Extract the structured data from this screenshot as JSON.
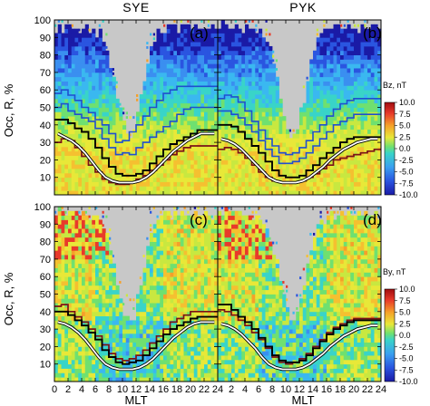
{
  "chart_data": {
    "type": "heatmap",
    "grid": "none",
    "xlabel": "MLT",
    "ylabel": "Occ, R, %",
    "xlim": [
      0,
      24
    ],
    "ylim": [
      0,
      100
    ],
    "x_ticks": [
      "0",
      "2",
      "4",
      "6",
      "8",
      "10",
      "12",
      "14",
      "16",
      "18",
      "20",
      "22",
      "24"
    ],
    "y_ticks": [
      "10",
      "20",
      "30",
      "40",
      "50",
      "60",
      "70",
      "80",
      "90",
      "100"
    ],
    "panels": [
      {
        "title": "SYE",
        "tag": "(a)",
        "colorbar_label": "",
        "colorbar_ticks": [],
        "thresholds": {
          "white_line": [
            35,
            33,
            31,
            28,
            24,
            19,
            14,
            10,
            8,
            7,
            7,
            7,
            8,
            10,
            13,
            17,
            21,
            25,
            28,
            31,
            33,
            35,
            35,
            35
          ],
          "black_line": [
            43,
            43,
            41,
            38,
            36,
            32,
            27,
            21,
            16,
            12,
            11,
            11,
            12,
            14,
            18,
            22,
            26,
            29,
            31,
            33,
            35,
            37,
            37,
            37
          ],
          "dark_red_line": [
            30,
            32,
            31,
            27,
            22,
            17,
            13,
            9,
            7,
            6,
            6,
            7,
            9,
            11,
            14,
            17,
            20,
            23,
            25,
            27,
            28,
            28,
            28,
            28
          ],
          "blue_lines": [
            [
              50,
              52,
              48,
              46,
              44,
              42,
              38,
              32,
              27,
              23,
              24,
              23,
              27,
              30,
              33,
              36,
              39,
              42,
              46,
              49,
              50,
              50,
              50,
              50
            ],
            [
              58,
              60,
              57,
              54,
              50,
              47,
              43,
              40,
              35,
              30,
              31,
              36,
              40,
              45,
              50,
              54,
              58,
              60,
              62,
              62,
              62,
              62,
              62,
              62
            ]
          ]
        }
      },
      {
        "title": "PYK",
        "tag": "(b)",
        "colorbar_label": "Bz, nT",
        "colorbar_ticks": [
          "10.0",
          "7.5",
          "5.0",
          "2.5",
          "0.0",
          "-2.5",
          "-5.0",
          "-7.5",
          "-10.0"
        ],
        "thresholds": {
          "white_line": [
            32,
            31,
            29,
            26,
            22,
            18,
            14,
            10,
            8,
            7,
            7,
            7,
            8,
            10,
            13,
            16,
            20,
            23,
            26,
            28,
            30,
            31,
            32,
            32
          ],
          "black_line": [
            40,
            40,
            39,
            36,
            32,
            28,
            24,
            19,
            14,
            11,
            10,
            10,
            11,
            14,
            17,
            21,
            24,
            27,
            30,
            32,
            33,
            33,
            33,
            33
          ],
          "dark_red_line": [
            26,
            27,
            26,
            24,
            21,
            17,
            13,
            10,
            8,
            7,
            7,
            7,
            8,
            10,
            12,
            15,
            17,
            20,
            21,
            22,
            23,
            24,
            25,
            26
          ],
          "blue_lines": [
            [
              48,
              48,
              46,
              44,
              40,
              36,
              31,
              26,
              22,
              18,
              18,
              19,
              21,
              24,
              28,
              32,
              36,
              40,
              42,
              44,
              46,
              46,
              46,
              46
            ],
            [
              55,
              57,
              56,
              53,
              48,
              42,
              37,
              32,
              28,
              24,
              23,
              24,
              27,
              31,
              36,
              40,
              45,
              49,
              52,
              54,
              55,
              55,
              55,
              55
            ]
          ]
        }
      },
      {
        "title": "",
        "tag": "(c)",
        "colorbar_label": "",
        "colorbar_ticks": [],
        "thresholds": {
          "white_line": [
            34,
            33,
            31,
            28,
            24,
            19,
            14,
            10,
            8,
            7,
            7,
            7,
            8,
            10,
            13,
            17,
            21,
            25,
            28,
            31,
            33,
            34,
            34,
            34
          ],
          "black_line": [
            40,
            40,
            38,
            35,
            32,
            28,
            24,
            18,
            14,
            11,
            10,
            11,
            12,
            15,
            19,
            23,
            27,
            30,
            32,
            34,
            36,
            37,
            37,
            37
          ],
          "dark_red_line": [
            43,
            44,
            40,
            37,
            34,
            30,
            26,
            21,
            16,
            13,
            12,
            13,
            15,
            18,
            22,
            26,
            30,
            34,
            36,
            38,
            40,
            40,
            40,
            40
          ],
          "blue_lines": []
        }
      },
      {
        "title": "",
        "tag": "(d)",
        "colorbar_label": "By, nT",
        "colorbar_ticks": [
          "10.0",
          "7.5",
          "5.0",
          "2.5",
          "0.0",
          "-2.5",
          "-5.0",
          "-7.5",
          "-10.0"
        ],
        "thresholds": {
          "white_line": [
            33,
            32,
            30,
            27,
            23,
            19,
            14,
            10,
            8,
            7,
            7,
            7,
            8,
            10,
            13,
            16,
            20,
            23,
            26,
            28,
            30,
            31,
            32,
            32
          ],
          "black_line": [
            44,
            44,
            41,
            37,
            34,
            30,
            25,
            20,
            15,
            12,
            11,
            11,
            12,
            15,
            19,
            23,
            27,
            30,
            32,
            34,
            35,
            35,
            35,
            35
          ],
          "dark_red_line": [
            41,
            40,
            38,
            35,
            32,
            28,
            24,
            19,
            14,
            11,
            10,
            11,
            13,
            16,
            20,
            24,
            28,
            31,
            33,
            35,
            36,
            36,
            36,
            36
          ],
          "blue_lines": []
        }
      }
    ]
  }
}
